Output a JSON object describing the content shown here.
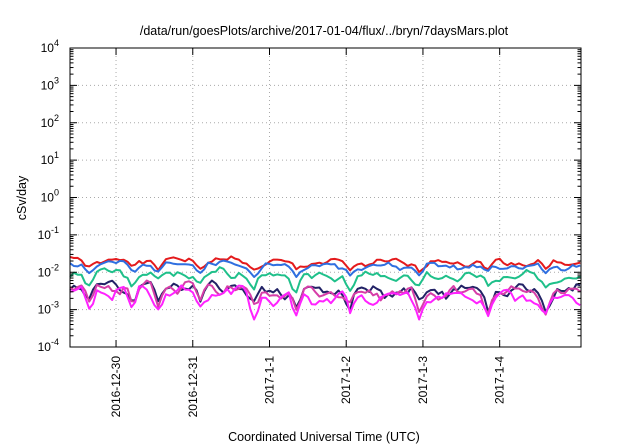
{
  "chart_data": {
    "type": "line",
    "title": "/data/run/goesPlots/archive/2017-01-04/flux/../bryn/7daysMars.plot",
    "xlabel": "Coordinated Universal Time (UTC)",
    "ylabel": "cSv/day",
    "y_scale": "log",
    "ylim": [
      0.0001,
      10000
    ],
    "xlim_days": [
      -2.6,
      4.06
    ],
    "y_ticks": [
      {
        "value": 0.0001,
        "base": "10",
        "exp": "-4"
      },
      {
        "value": 0.001,
        "base": "10",
        "exp": "-3"
      },
      {
        "value": 0.01,
        "base": "10",
        "exp": "-2"
      },
      {
        "value": 0.1,
        "base": "10",
        "exp": "-1"
      },
      {
        "value": 1,
        "base": "10",
        "exp": "0"
      },
      {
        "value": 10,
        "base": "10",
        "exp": "1"
      },
      {
        "value": 100,
        "base": "10",
        "exp": "2"
      },
      {
        "value": 1000,
        "base": "10",
        "exp": "3"
      },
      {
        "value": 10000,
        "base": "10",
        "exp": "4"
      }
    ],
    "x_ticks": [
      {
        "label": "2016-12-30",
        "day": -2
      },
      {
        "label": "2016-12-31",
        "day": -1
      },
      {
        "label": "2017-1-1",
        "day": 0
      },
      {
        "label": "2017-1-2",
        "day": 1
      },
      {
        "label": "2017-1-3",
        "day": 2
      },
      {
        "label": "2017-1-4",
        "day": 3
      }
    ],
    "grid": true,
    "legend": "none",
    "series": [
      {
        "color": "#e41a1c",
        "base_log": -1.68,
        "amp": 0.055,
        "drop": 0.35,
        "seed": 1,
        "x_start_day": -2.6,
        "x_step_day": 0.05
      },
      {
        "color": "#2f6fe0",
        "base_log": -1.78,
        "amp": 0.055,
        "drop": 0.35,
        "seed": 2,
        "x_start_day": -2.6,
        "x_step_day": 0.05
      },
      {
        "color": "#1fc08a",
        "base_log": -2.02,
        "amp": 0.08,
        "drop": 0.55,
        "seed": 3,
        "x_start_day": -2.6,
        "x_step_day": 0.05
      },
      {
        "color": "#222266",
        "base_log": -2.35,
        "amp": 0.1,
        "drop": 0.8,
        "seed": 4,
        "x_start_day": -2.6,
        "x_step_day": 0.05
      },
      {
        "color": "#d63ea8",
        "base_log": -2.4,
        "amp": 0.1,
        "drop": 0.8,
        "seed": 5,
        "x_start_day": -2.6,
        "x_step_day": 0.05
      },
      {
        "color": "#ff22ff",
        "base_log": -2.52,
        "amp": 0.11,
        "drop": 0.85,
        "seed": 6,
        "x_start_day": -2.6,
        "x_step_day": 0.05
      }
    ]
  }
}
